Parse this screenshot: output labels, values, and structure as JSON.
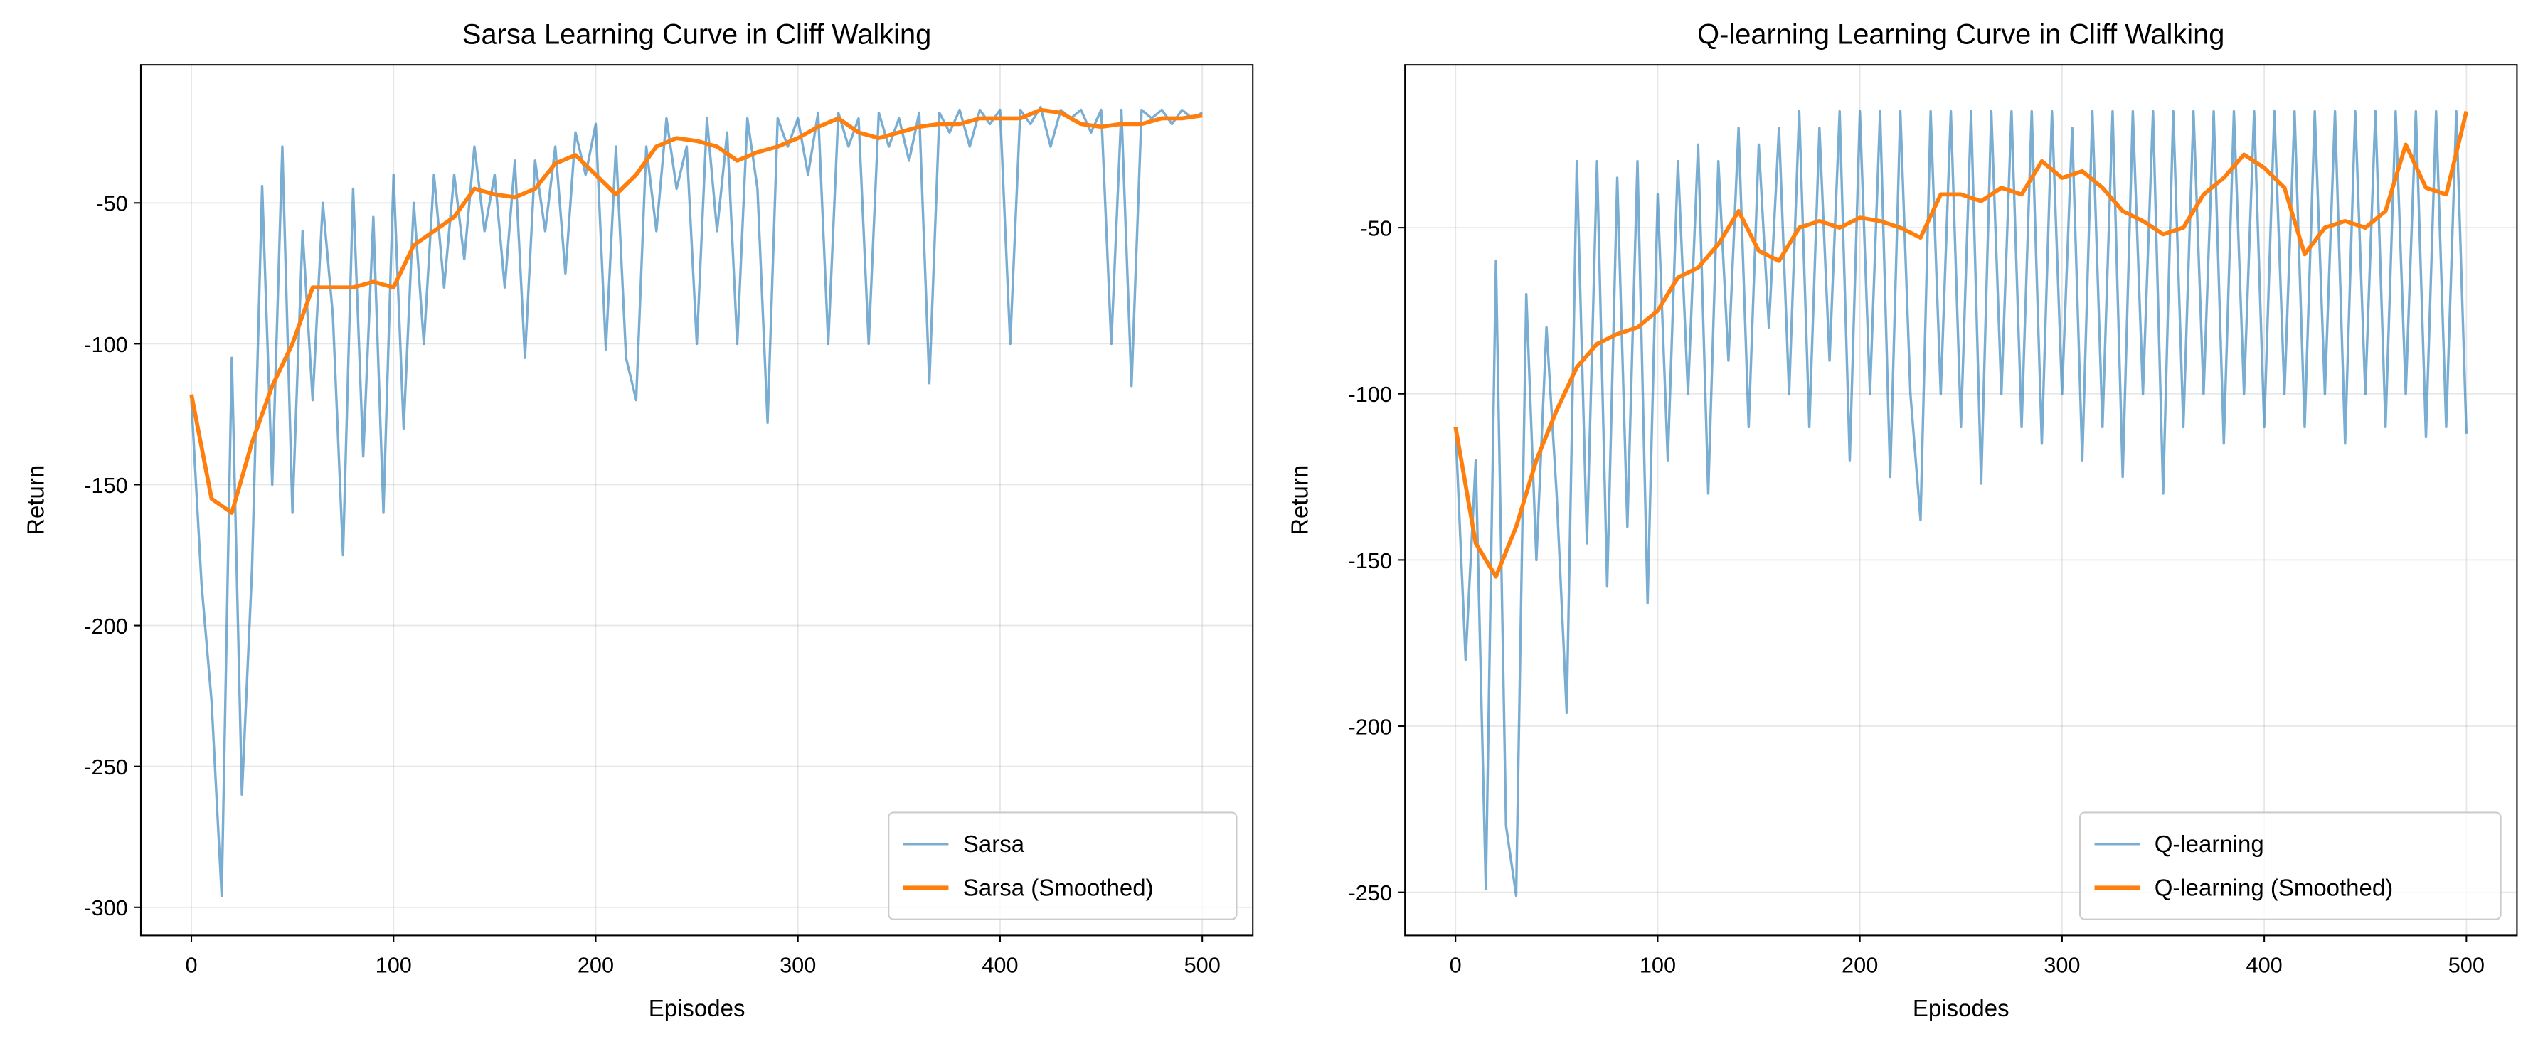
{
  "chart_data": [
    {
      "type": "line",
      "title": "Sarsa Learning Curve in Cliff Walking",
      "x_label": "Episodes",
      "y_label": "Return",
      "xlim": [
        -25,
        525
      ],
      "ylim": [
        -310,
        -1
      ],
      "xticks": [
        0,
        100,
        200,
        300,
        400,
        500
      ],
      "yticks": [
        -300,
        -250,
        -200,
        -150,
        -100,
        -50
      ],
      "grid": true,
      "legend": "lower right",
      "series": [
        {
          "name": "Sarsa",
          "color": "#1f77b4",
          "alpha": 0.6,
          "linewidth": 1.5,
          "x": [
            0,
            5,
            10,
            15,
            20,
            25,
            30,
            35,
            40,
            45,
            50,
            55,
            60,
            65,
            70,
            75,
            80,
            85,
            90,
            95,
            100,
            105,
            110,
            115,
            120,
            125,
            130,
            135,
            140,
            145,
            150,
            155,
            160,
            165,
            170,
            175,
            180,
            185,
            190,
            195,
            200,
            205,
            210,
            215,
            220,
            225,
            230,
            235,
            240,
            245,
            250,
            255,
            260,
            265,
            270,
            275,
            280,
            285,
            290,
            295,
            300,
            305,
            310,
            315,
            320,
            325,
            330,
            335,
            340,
            345,
            350,
            355,
            360,
            365,
            370,
            375,
            380,
            385,
            390,
            395,
            400,
            405,
            410,
            415,
            420,
            425,
            430,
            435,
            440,
            445,
            450,
            455,
            460,
            465,
            470,
            475,
            480,
            485,
            490,
            495,
            500
          ],
          "values": [
            -120,
            -185,
            -227,
            -296,
            -105,
            -260,
            -180,
            -44,
            -150,
            -30,
            -160,
            -60,
            -120,
            -50,
            -90,
            -175,
            -45,
            -140,
            -55,
            -160,
            -40,
            -130,
            -50,
            -100,
            -40,
            -80,
            -40,
            -70,
            -30,
            -60,
            -40,
            -80,
            -35,
            -105,
            -35,
            -60,
            -30,
            -75,
            -25,
            -40,
            -22,
            -102,
            -30,
            -105,
            -120,
            -30,
            -60,
            -20,
            -45,
            -30,
            -100,
            -20,
            -60,
            -25,
            -100,
            -20,
            -45,
            -128,
            -20,
            -30,
            -20,
            -40,
            -18,
            -100,
            -18,
            -30,
            -20,
            -100,
            -18,
            -30,
            -20,
            -35,
            -18,
            -114,
            -18,
            -25,
            -17,
            -30,
            -17,
            -22,
            -17,
            -100,
            -17,
            -22,
            -16,
            -30,
            -17,
            -20,
            -17,
            -25,
            -17,
            -100,
            -17,
            -115,
            -17,
            -20,
            -17,
            -22,
            -17,
            -20,
            -18
          ]
        },
        {
          "name": "Sarsa (Smoothed)",
          "color": "#ff7f0e",
          "alpha": 1,
          "linewidth": 2.5,
          "x": [
            0,
            10,
            20,
            30,
            40,
            50,
            60,
            70,
            80,
            90,
            100,
            110,
            120,
            130,
            140,
            150,
            160,
            170,
            180,
            190,
            200,
            210,
            220,
            230,
            240,
            250,
            260,
            270,
            280,
            290,
            300,
            310,
            320,
            330,
            340,
            350,
            360,
            370,
            380,
            390,
            400,
            410,
            420,
            430,
            440,
            450,
            460,
            470,
            480,
            490,
            500
          ],
          "values": [
            -118,
            -155,
            -160,
            -135,
            -115,
            -100,
            -80,
            -80,
            -80,
            -78,
            -80,
            -65,
            -60,
            -55,
            -45,
            -47,
            -48,
            -45,
            -36,
            -33,
            -40,
            -47,
            -40,
            -30,
            -27,
            -28,
            -30,
            -35,
            -32,
            -30,
            -27,
            -23,
            -20,
            -25,
            -27,
            -25,
            -23,
            -22,
            -22,
            -20,
            -20,
            -20,
            -17,
            -18,
            -22,
            -23,
            -22,
            -22,
            -20,
            -20,
            -19
          ]
        }
      ]
    },
    {
      "type": "line",
      "title": "Q-learning Learning Curve in Cliff Walking",
      "x_label": "Episodes",
      "y_label": "Return",
      "xlim": [
        -25,
        525
      ],
      "ylim": [
        -263,
        -1
      ],
      "xticks": [
        0,
        100,
        200,
        300,
        400,
        500
      ],
      "yticks": [
        -250,
        -200,
        -150,
        -100,
        -50
      ],
      "grid": true,
      "legend": "lower right",
      "series": [
        {
          "name": "Q-learning",
          "color": "#1f77b4",
          "alpha": 0.6,
          "linewidth": 1.5,
          "x": [
            0,
            5,
            10,
            15,
            20,
            25,
            30,
            35,
            40,
            45,
            50,
            55,
            60,
            65,
            70,
            75,
            80,
            85,
            90,
            95,
            100,
            105,
            110,
            115,
            120,
            125,
            130,
            135,
            140,
            145,
            150,
            155,
            160,
            165,
            170,
            175,
            180,
            185,
            190,
            195,
            200,
            205,
            210,
            215,
            220,
            225,
            230,
            235,
            240,
            245,
            250,
            255,
            260,
            265,
            270,
            275,
            280,
            285,
            290,
            295,
            300,
            305,
            310,
            315,
            320,
            325,
            330,
            335,
            340,
            345,
            350,
            355,
            360,
            365,
            370,
            375,
            380,
            385,
            390,
            395,
            400,
            405,
            410,
            415,
            420,
            425,
            430,
            435,
            440,
            445,
            450,
            455,
            460,
            465,
            470,
            475,
            480,
            485,
            490,
            495,
            500
          ],
          "values": [
            -110,
            -180,
            -120,
            -249,
            -60,
            -230,
            -251,
            -70,
            -150,
            -80,
            -130,
            -196,
            -30,
            -145,
            -30,
            -158,
            -35,
            -140,
            -30,
            -163,
            -40,
            -120,
            -30,
            -100,
            -25,
            -130,
            -30,
            -90,
            -20,
            -110,
            -25,
            -80,
            -20,
            -100,
            -15,
            -110,
            -20,
            -90,
            -15,
            -120,
            -15,
            -100,
            -15,
            -125,
            -15,
            -100,
            -138,
            -15,
            -100,
            -15,
            -110,
            -15,
            -127,
            -15,
            -100,
            -15,
            -110,
            -15,
            -115,
            -15,
            -100,
            -20,
            -120,
            -15,
            -110,
            -15,
            -125,
            -15,
            -100,
            -15,
            -130,
            -15,
            -110,
            -15,
            -100,
            -15,
            -115,
            -15,
            -100,
            -15,
            -110,
            -15,
            -100,
            -15,
            -110,
            -15,
            -100,
            -15,
            -115,
            -15,
            -100,
            -15,
            -110,
            -15,
            -100,
            -15,
            -113,
            -15,
            -110,
            -15,
            -112
          ]
        },
        {
          "name": "Q-learning (Smoothed)",
          "color": "#ff7f0e",
          "alpha": 1,
          "linewidth": 2.5,
          "x": [
            0,
            10,
            20,
            30,
            40,
            50,
            60,
            70,
            80,
            90,
            100,
            110,
            120,
            130,
            140,
            150,
            160,
            170,
            180,
            190,
            200,
            210,
            220,
            230,
            240,
            250,
            260,
            270,
            280,
            290,
            300,
            310,
            320,
            330,
            340,
            350,
            360,
            370,
            380,
            390,
            400,
            410,
            420,
            430,
            440,
            450,
            460,
            470,
            480,
            490,
            500
          ],
          "values": [
            -110,
            -145,
            -155,
            -140,
            -120,
            -105,
            -92,
            -85,
            -82,
            -80,
            -75,
            -65,
            -62,
            -55,
            -45,
            -57,
            -60,
            -50,
            -48,
            -50,
            -47,
            -48,
            -50,
            -53,
            -40,
            -40,
            -42,
            -38,
            -40,
            -30,
            -35,
            -33,
            -38,
            -45,
            -48,
            -52,
            -50,
            -40,
            -35,
            -28,
            -32,
            -38,
            -58,
            -50,
            -48,
            -50,
            -45,
            -25,
            -38,
            -40,
            -15
          ]
        }
      ]
    }
  ]
}
